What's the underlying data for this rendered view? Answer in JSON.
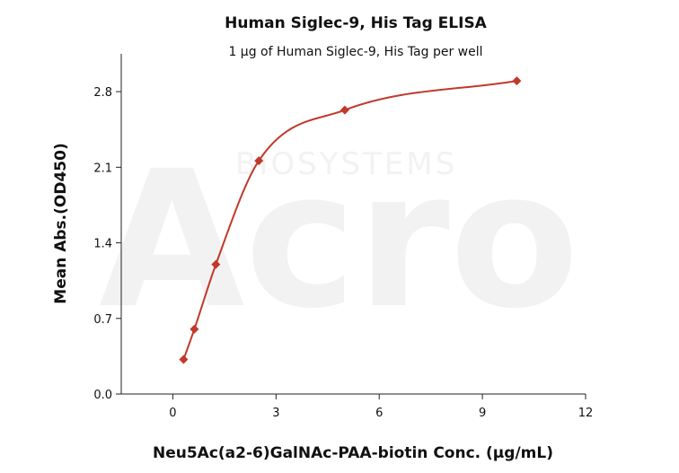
{
  "chart_data": {
    "type": "scatter",
    "title": "Human Siglec-9, His Tag ELISA",
    "subtitle": "1 μg of Human Siglec-9, His Tag per well",
    "xlabel": "Neu5Ac(a2-6)GalNAc-PAA-biotin Conc. (μg/mL)",
    "ylabel": "Mean Abs.(OD450)",
    "xlim": [
      -1.5,
      12
    ],
    "ylim": [
      0,
      3.15
    ],
    "xticks": [
      0,
      3,
      6,
      9,
      12
    ],
    "yticks": [
      0.0,
      0.7,
      1.4,
      2.1,
      2.8
    ],
    "grid": false,
    "series": [
      {
        "color": "#c0392b",
        "marker": "diamond",
        "points": [
          {
            "x": 0.3125,
            "y": 0.32
          },
          {
            "x": 0.625,
            "y": 0.6
          },
          {
            "x": 1.25,
            "y": 1.2
          },
          {
            "x": 2.5,
            "y": 2.16
          },
          {
            "x": 5,
            "y": 2.63
          },
          {
            "x": 10,
            "y": 2.9
          }
        ],
        "fit": "curve"
      }
    ]
  },
  "watermark": {
    "brand": "Acro",
    "tagline": "BIOSYSTEMS"
  }
}
